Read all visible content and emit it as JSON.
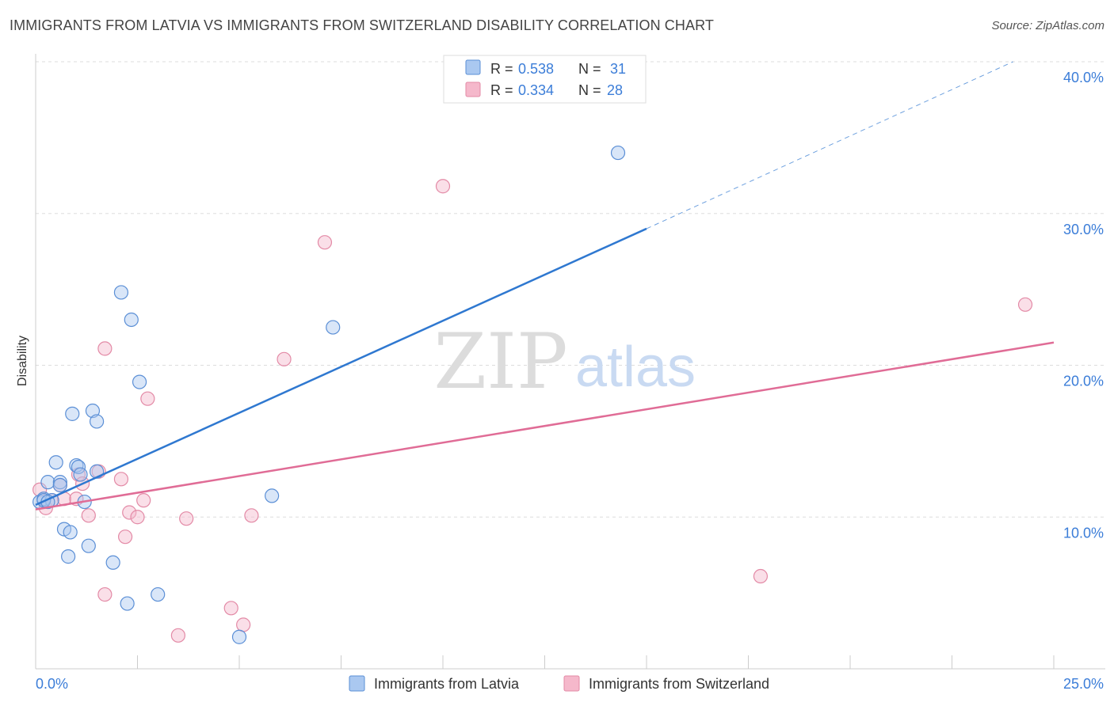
{
  "title": "IMMIGRANTS FROM LATVIA VS IMMIGRANTS FROM SWITZERLAND DISABILITY CORRELATION CHART",
  "source": "Source: ZipAtlas.com",
  "watermark": {
    "zip": "ZIP",
    "atlas": "atlas"
  },
  "legend_top": [
    {
      "r_label": "R = ",
      "r_value": "0.538",
      "n_label": "N = ",
      "n_value": "31"
    },
    {
      "r_label": "R = ",
      "r_value": "0.334",
      "n_label": "N = ",
      "n_value": "28"
    }
  ],
  "colors": {
    "latvia_fill": "#aac8f0",
    "latvia_stroke": "#5b8fd6",
    "latvia_line": "#2f78d0",
    "swiss_fill": "#f5b8cb",
    "swiss_stroke": "#e38aa6",
    "swiss_line": "#e06c96",
    "axis_text": "#3b7dd8",
    "grid": "#dddddd"
  },
  "chart_data": {
    "type": "scatter",
    "title": "IMMIGRANTS FROM LATVIA VS IMMIGRANTS FROM SWITZERLAND DISABILITY CORRELATION CHART",
    "xlabel": "",
    "ylabel": "Disability",
    "xlim": [
      0,
      25
    ],
    "ylim": [
      0,
      40
    ],
    "x_tick_labels": [
      "0.0%",
      "25.0%"
    ],
    "y_tick_labels": [
      "10.0%",
      "20.0%",
      "30.0%",
      "40.0%"
    ],
    "y_ticks": [
      10,
      20,
      30,
      40
    ],
    "grid": true,
    "legend_position": "bottom",
    "series": [
      {
        "name": "Immigrants from Latvia",
        "points": [
          [
            0.1,
            11.0
          ],
          [
            0.2,
            11.2
          ],
          [
            0.3,
            12.3
          ],
          [
            0.4,
            11.1
          ],
          [
            0.5,
            13.6
          ],
          [
            0.6,
            12.3
          ],
          [
            0.6,
            12.1
          ],
          [
            0.7,
            9.2
          ],
          [
            0.8,
            7.4
          ],
          [
            0.85,
            9.0
          ],
          [
            0.9,
            16.8
          ],
          [
            1.0,
            13.4
          ],
          [
            1.05,
            13.3
          ],
          [
            1.1,
            12.8
          ],
          [
            1.2,
            11.0
          ],
          [
            1.3,
            8.1
          ],
          [
            1.4,
            17.0
          ],
          [
            1.5,
            16.3
          ],
          [
            1.5,
            13.0
          ],
          [
            1.9,
            7.0
          ],
          [
            2.1,
            24.8
          ],
          [
            2.25,
            4.3
          ],
          [
            2.35,
            23.0
          ],
          [
            2.55,
            18.9
          ],
          [
            3.0,
            4.9
          ],
          [
            5.0,
            2.1
          ],
          [
            5.8,
            11.4
          ],
          [
            7.3,
            22.5
          ],
          [
            14.3,
            34.0
          ],
          [
            0.2,
            11.1
          ],
          [
            0.3,
            11.0
          ]
        ]
      },
      {
        "name": "Immigrants from Switzerland",
        "points": [
          [
            0.1,
            11.8
          ],
          [
            0.25,
            10.6
          ],
          [
            0.4,
            11.1
          ],
          [
            0.6,
            12.1
          ],
          [
            0.7,
            11.2
          ],
          [
            1.0,
            11.2
          ],
          [
            1.05,
            12.8
          ],
          [
            1.15,
            12.2
          ],
          [
            1.3,
            10.1
          ],
          [
            1.55,
            13.0
          ],
          [
            1.7,
            4.9
          ],
          [
            1.7,
            21.1
          ],
          [
            2.1,
            12.5
          ],
          [
            2.2,
            8.7
          ],
          [
            2.3,
            10.3
          ],
          [
            2.5,
            10.0
          ],
          [
            2.65,
            11.1
          ],
          [
            2.75,
            17.8
          ],
          [
            3.5,
            2.2
          ],
          [
            3.7,
            9.9
          ],
          [
            4.8,
            4.0
          ],
          [
            5.1,
            2.9
          ],
          [
            5.3,
            10.1
          ],
          [
            6.1,
            20.4
          ],
          [
            7.1,
            28.1
          ],
          [
            10.0,
            31.8
          ],
          [
            17.8,
            6.1
          ],
          [
            24.3,
            24.0
          ]
        ]
      }
    ],
    "trend_lines": [
      {
        "series": "Immigrants from Latvia",
        "x": [
          0,
          15
        ],
        "y": [
          10.8,
          29.0
        ],
        "dashed_to": [
          24.0,
          40.0
        ]
      },
      {
        "series": "Immigrants from Switzerland",
        "x": [
          0,
          25
        ],
        "y": [
          10.5,
          21.5
        ]
      }
    ]
  }
}
